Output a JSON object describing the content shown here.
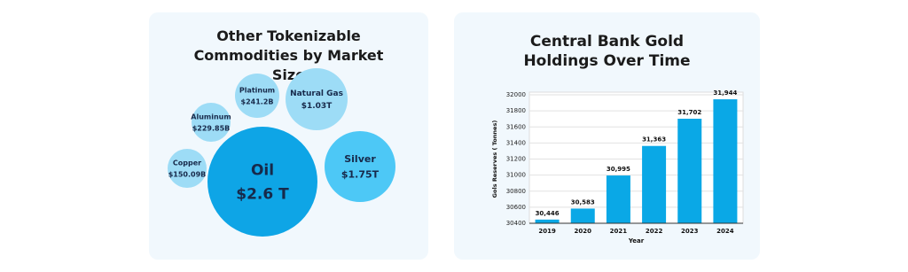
{
  "chart_data": [
    {
      "type": "bubble",
      "title": "Other Tokenizable Commodities by Market Size",
      "categories": [
        "Oil",
        "Silver",
        "Natural Gas",
        "Platinum",
        "Aluminum",
        "Copper"
      ],
      "values": [
        2600,
        1750,
        1030,
        241.2,
        229.85,
        150.09
      ],
      "value_labels": [
        "$2.6 T",
        "$1.75T",
        "$1.03T",
        "$241.2B",
        "$229.85B",
        "$150.09B"
      ],
      "colors": [
        "#0ea5e6",
        "#4dc8f6",
        "#9ddcf6",
        "#9ddcf6",
        "#9ddcf6",
        "#9ddcf6"
      ]
    },
    {
      "type": "bar",
      "title": "Central Bank Gold Holdings Over Time",
      "x_label": "Year",
      "y_label": "Gols Reserves ( Tonnes)",
      "categories": [
        "2019",
        "2020",
        "2021",
        "2022",
        "2023",
        "2024"
      ],
      "values": [
        30446,
        30583,
        30995,
        31363,
        31702,
        31944
      ],
      "value_labels": [
        "30,446",
        "30,583",
        "30,995",
        "31,363",
        "31,702",
        "31,944"
      ],
      "color": "#0aa8e6",
      "ylim": [
        30400,
        32000
      ],
      "yticks": [
        30400,
        30600,
        30800,
        31000,
        31200,
        31400,
        31600,
        31800,
        32000
      ],
      "grid": true
    }
  ]
}
